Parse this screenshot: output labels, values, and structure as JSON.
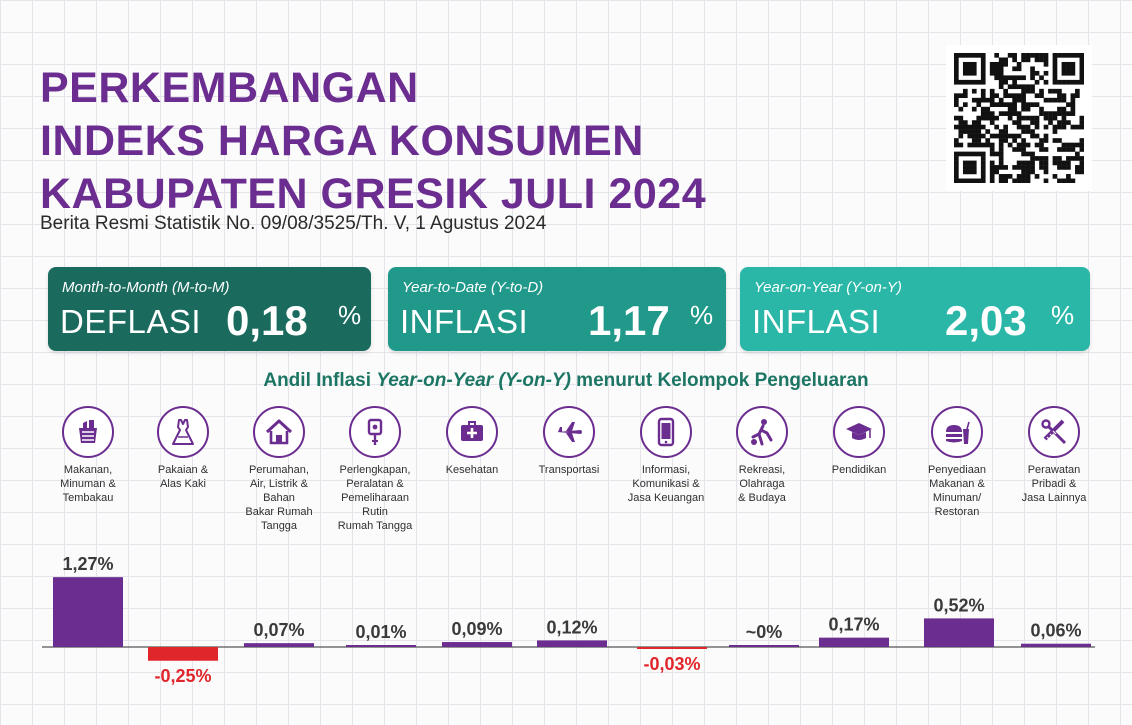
{
  "header": {
    "title_lines": [
      "PERKEMBANGAN",
      "INDEKS HARGA KONSUMEN",
      "KABUPATEN GRESIK JULI 2024"
    ],
    "subtitle": "Berita Resmi Statistik No. 09/08/3525/Th. V, 1 Agustus 2024"
  },
  "cards": [
    {
      "label": "Month-to-Month (M-to-M)",
      "kind": "DEFLASI",
      "value": "0,18",
      "unit": "%",
      "color": "#1a6b5e"
    },
    {
      "label": "Year-to-Date (Y-to-D)",
      "kind": "INFLASI",
      "value": "1,17",
      "unit": "%",
      "color": "#21998a"
    },
    {
      "label": "Year-on-Year (Y-on-Y)",
      "kind": "INFLASI",
      "value": "2,03",
      "unit": "%",
      "color": "#2ab7a7"
    }
  ],
  "section": {
    "title_pre": "Andil Inflasi ",
    "title_em": "Year-on-Year (Y-on-Y)",
    "title_post": " menurut Kelompok Pengeluaran"
  },
  "categories": [
    {
      "name": "Makanan,\nMinuman &\nTembakau",
      "icon": "grocery-basket-icon"
    },
    {
      "name": "Pakaian &\nAlas Kaki",
      "icon": "dress-icon"
    },
    {
      "name": "Perumahan,\nAir, Listrik &\nBahan\nBakar Rumah\nTangga",
      "icon": "house-icon"
    },
    {
      "name": "Perlengkapan,\nPeralatan &\nPemeliharaan\nRutin\nRumah Tangga",
      "icon": "plug-icon"
    },
    {
      "name": "Kesehatan",
      "icon": "first-aid-kit-icon"
    },
    {
      "name": "Transportasi",
      "icon": "airplane-icon"
    },
    {
      "name": "Informasi,\nKomunikasi &\nJasa Keuangan",
      "icon": "smartphone-icon"
    },
    {
      "name": "Rekreasi,\nOlahraga\n& Budaya",
      "icon": "soccer-player-icon"
    },
    {
      "name": "Pendidikan",
      "icon": "graduation-cap-icon"
    },
    {
      "name": "Penyediaan\nMakanan &\nMinuman/\nRestoran",
      "icon": "burger-drink-icon"
    },
    {
      "name": "Perawatan\nPribadi &\nJasa Lainnya",
      "icon": "scissors-comb-icon"
    }
  ],
  "chart_data": {
    "type": "bar",
    "title": "Andil Inflasi Year-on-Year (Y-on-Y) menurut Kelompok Pengeluaran",
    "categories": [
      "Makanan, Minuman & Tembakau",
      "Pakaian & Alas Kaki",
      "Perumahan, Air, Listrik & Bahan Bakar Rumah Tangga",
      "Perlengkapan, Peralatan & Pemeliharaan Rutin Rumah Tangga",
      "Kesehatan",
      "Transportasi",
      "Informasi, Komunikasi & Jasa Keuangan",
      "Rekreasi, Olahraga & Budaya",
      "Pendidikan",
      "Penyediaan Makanan & Minuman/Restoran",
      "Perawatan Pribadi & Jasa Lainnya"
    ],
    "values": [
      1.27,
      -0.25,
      0.07,
      0.01,
      0.09,
      0.12,
      -0.03,
      0.0,
      0.17,
      0.52,
      0.06
    ],
    "labels": [
      "1,27%",
      "-0,25%",
      "0,07%",
      "0,01%",
      "0,09%",
      "0,12%",
      "-0,03%",
      "~0%",
      "0,17%",
      "0,52%",
      "0,06%"
    ],
    "unit": "%",
    "colors": {
      "positive": "#6b2d8f",
      "negative": "#e0262a"
    },
    "grid": false,
    "legend": "none"
  }
}
